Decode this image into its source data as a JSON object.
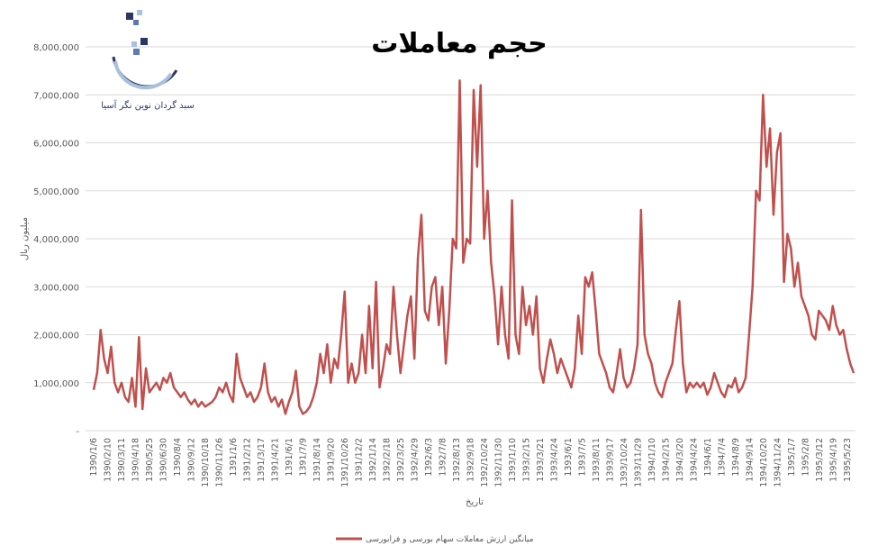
{
  "logo": {
    "name": "سبد گردان نوین نگر آسیا",
    "colors": {
      "dark": "#2c3566",
      "light": "#a8c0e0",
      "mid": "#5a7ab0"
    }
  },
  "chart_data": {
    "type": "line",
    "title": "حجم معاملات",
    "xlabel": "تاریخ",
    "ylabel": "میلیون ریال",
    "ylim": [
      0,
      8000000
    ],
    "y_ticks": [
      0,
      1000000,
      2000000,
      3000000,
      4000000,
      5000000,
      6000000,
      7000000,
      8000000
    ],
    "y_tick_labels": [
      "-",
      "1,000,000",
      "2,000,000",
      "3,000,000",
      "4,000,000",
      "5,000,000",
      "6,000,000",
      "7,000,000",
      "8,000,000"
    ],
    "x_tick_labels": [
      "1390/1/6",
      "1390/2/10",
      "1390/3/11",
      "1390/4/18",
      "1390/5/25",
      "1390/6/30",
      "1390/8/4",
      "1390/9/12",
      "1390/10/18",
      "1390/11/26",
      "1391/1/6",
      "1391/2/12",
      "1391/3/17",
      "1391/4/21",
      "1391/6/1",
      "1391/7/9",
      "1391/8/14",
      "1391/9/20",
      "1391/10/26",
      "1391/12/2",
      "1392/1/14",
      "1392/2/18",
      "1392/3/25",
      "1392/4/29",
      "1392/6/3",
      "1392/7/8",
      "1392/8/13",
      "1392/9/18",
      "1392/10/24",
      "1392/11/30",
      "1393/1/10",
      "1393/2/15",
      "1393/3/21",
      "1393/4/24",
      "1393/6/1",
      "1393/7/5",
      "1393/8/11",
      "1393/9/17",
      "1393/10/24",
      "1393/11/29",
      "1394/1/10",
      "1394/2/15",
      "1394/3/20",
      "1394/4/24",
      "1394/6/1",
      "1394/7/4",
      "1394/8/9",
      "1394/9/14",
      "1394/10/20",
      "1394/11/24",
      "1395/1/7",
      "1395/2/8",
      "1395/3/12",
      "1395/4/19",
      "1395/5/23"
    ],
    "grid": true,
    "legend_position": "bottom",
    "series": [
      {
        "name": "میانگین ارزش معاملات سهام بورسی و فرابورسی",
        "color": "#c0504d",
        "values": [
          850000,
          1200000,
          2100000,
          1500000,
          1200000,
          1750000,
          1000000,
          800000,
          1000000,
          700000,
          600000,
          1100000,
          500000,
          1950000,
          450000,
          1300000,
          800000,
          900000,
          1000000,
          850000,
          1100000,
          1000000,
          1200000,
          900000,
          800000,
          700000,
          800000,
          650000,
          550000,
          650000,
          500000,
          600000,
          500000,
          550000,
          600000,
          700000,
          900000,
          800000,
          1000000,
          750000,
          600000,
          1600000,
          1100000,
          900000,
          700000,
          800000,
          600000,
          700000,
          900000,
          1400000,
          800000,
          600000,
          700000,
          500000,
          650000,
          350000,
          600000,
          800000,
          1250000,
          500000,
          350000,
          400000,
          500000,
          700000,
          1000000,
          1600000,
          1200000,
          1800000,
          1000000,
          1500000,
          1300000,
          2000000,
          2900000,
          1000000,
          1400000,
          1000000,
          1200000,
          2000000,
          1200000,
          2600000,
          1300000,
          3100000,
          900000,
          1300000,
          1800000,
          1600000,
          3000000,
          2000000,
          1200000,
          1800000,
          2400000,
          2800000,
          1500000,
          3600000,
          4500000,
          2500000,
          2300000,
          3000000,
          3200000,
          2200000,
          3000000,
          1400000,
          2500000,
          4000000,
          3800000,
          7300000,
          3500000,
          4000000,
          3900000,
          7100000,
          5500000,
          7200000,
          4000000,
          5000000,
          3500000,
          2800000,
          1800000,
          3000000,
          2000000,
          1500000,
          4800000,
          2000000,
          1600000,
          3000000,
          2200000,
          2600000,
          2000000,
          2800000,
          1300000,
          1000000,
          1500000,
          1900000,
          1600000,
          1200000,
          1500000,
          1300000,
          1100000,
          900000,
          1300000,
          2400000,
          1600000,
          3200000,
          3000000,
          3300000,
          2500000,
          1600000,
          1400000,
          1200000,
          900000,
          800000,
          1200000,
          1700000,
          1100000,
          900000,
          1000000,
          1300000,
          1800000,
          4600000,
          2000000,
          1600000,
          1400000,
          1000000,
          800000,
          700000,
          1000000,
          1200000,
          1400000,
          2100000,
          2700000,
          1400000,
          800000,
          1000000,
          900000,
          1000000,
          900000,
          1000000,
          750000,
          900000,
          1200000,
          1000000,
          800000,
          700000,
          950000,
          900000,
          1100000,
          800000,
          900000,
          1100000,
          2000000,
          3000000,
          5000000,
          4800000,
          7000000,
          5500000,
          6300000,
          4500000,
          5800000,
          6200000,
          3100000,
          4100000,
          3800000,
          3000000,
          3500000,
          2800000,
          2600000,
          2400000,
          2000000,
          1900000,
          2500000,
          2400000,
          2300000,
          2100000,
          2600000,
          2200000,
          2000000,
          2100000,
          1700000,
          1400000,
          1200000
        ]
      }
    ]
  }
}
